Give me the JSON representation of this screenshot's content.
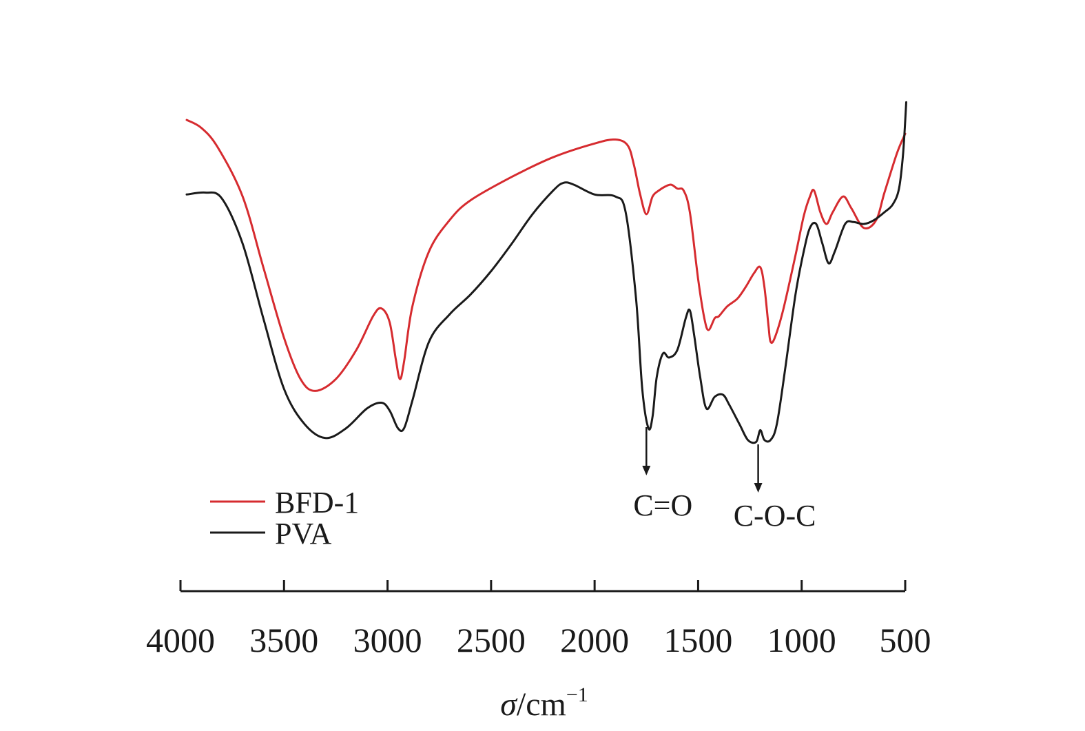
{
  "chart_data": {
    "type": "line",
    "xlabel": "σ/cm⁻¹",
    "xlabel_parts": {
      "symbol": "σ",
      "unit": "/cm",
      "exponent": "−1"
    },
    "xlim": [
      4000,
      500
    ],
    "x_reversed": true,
    "y_axis_shown": false,
    "grid": false,
    "legend_placement": "lower-left",
    "x_ticks": [
      {
        "value": 4000,
        "label": "4000"
      },
      {
        "value": 3500,
        "label": "3500"
      },
      {
        "value": 3000,
        "label": "3000"
      },
      {
        "value": 2500,
        "label": "2500"
      },
      {
        "value": 2000,
        "label": "2000"
      },
      {
        "value": 1500,
        "label": "1500"
      },
      {
        "value": 1000,
        "label": "1000"
      },
      {
        "value": 500,
        "label": "500"
      }
    ],
    "series": [
      {
        "name": "BFD-1",
        "color": "#d62b2f",
        "points": [
          [
            3970,
            0.835
          ],
          [
            3900,
            0.815
          ],
          [
            3820,
            0.765
          ],
          [
            3700,
            0.64
          ],
          [
            3600,
            0.46
          ],
          [
            3500,
            0.28
          ],
          [
            3420,
            0.175
          ],
          [
            3350,
            0.145
          ],
          [
            3250,
            0.175
          ],
          [
            3150,
            0.25
          ],
          [
            3070,
            0.335
          ],
          [
            3030,
            0.355
          ],
          [
            2990,
            0.32
          ],
          [
            2960,
            0.225
          ],
          [
            2940,
            0.175
          ],
          [
            2920,
            0.22
          ],
          [
            2880,
            0.36
          ],
          [
            2800,
            0.5
          ],
          [
            2700,
            0.58
          ],
          [
            2600,
            0.63
          ],
          [
            2400,
            0.69
          ],
          [
            2200,
            0.74
          ],
          [
            2000,
            0.775
          ],
          [
            1900,
            0.785
          ],
          [
            1840,
            0.77
          ],
          [
            1810,
            0.72
          ],
          [
            1780,
            0.645
          ],
          [
            1750,
            0.595
          ],
          [
            1720,
            0.64
          ],
          [
            1690,
            0.655
          ],
          [
            1660,
            0.665
          ],
          [
            1630,
            0.67
          ],
          [
            1600,
            0.66
          ],
          [
            1570,
            0.655
          ],
          [
            1540,
            0.6
          ],
          [
            1500,
            0.43
          ],
          [
            1470,
            0.33
          ],
          [
            1450,
            0.3
          ],
          [
            1420,
            0.33
          ],
          [
            1400,
            0.335
          ],
          [
            1360,
            0.36
          ],
          [
            1310,
            0.38
          ],
          [
            1270,
            0.41
          ],
          [
            1230,
            0.445
          ],
          [
            1200,
            0.46
          ],
          [
            1180,
            0.41
          ],
          [
            1160,
            0.31
          ],
          [
            1150,
            0.27
          ],
          [
            1130,
            0.28
          ],
          [
            1090,
            0.35
          ],
          [
            1030,
            0.49
          ],
          [
            990,
            0.59
          ],
          [
            960,
            0.64
          ],
          [
            940,
            0.655
          ],
          [
            910,
            0.6
          ],
          [
            880,
            0.57
          ],
          [
            850,
            0.6
          ],
          [
            800,
            0.64
          ],
          [
            760,
            0.61
          ],
          [
            700,
            0.56
          ],
          [
            640,
            0.58
          ],
          [
            600,
            0.65
          ],
          [
            540,
            0.75
          ],
          [
            500,
            0.8
          ]
        ]
      },
      {
        "name": "PVA",
        "color": "#1a1a1a",
        "points": [
          [
            3970,
            0.645
          ],
          [
            3880,
            0.65
          ],
          [
            3800,
            0.635
          ],
          [
            3700,
            0.52
          ],
          [
            3600,
            0.33
          ],
          [
            3500,
            0.15
          ],
          [
            3400,
            0.06
          ],
          [
            3300,
            0.025
          ],
          [
            3200,
            0.05
          ],
          [
            3100,
            0.1
          ],
          [
            3030,
            0.115
          ],
          [
            2990,
            0.095
          ],
          [
            2950,
            0.05
          ],
          [
            2920,
            0.05
          ],
          [
            2880,
            0.12
          ],
          [
            2800,
            0.27
          ],
          [
            2700,
            0.34
          ],
          [
            2600,
            0.39
          ],
          [
            2500,
            0.45
          ],
          [
            2400,
            0.52
          ],
          [
            2300,
            0.595
          ],
          [
            2200,
            0.655
          ],
          [
            2150,
            0.675
          ],
          [
            2100,
            0.67
          ],
          [
            2000,
            0.645
          ],
          [
            1900,
            0.64
          ],
          [
            1850,
            0.6
          ],
          [
            1800,
            0.38
          ],
          [
            1770,
            0.15
          ],
          [
            1740,
            0.05
          ],
          [
            1720,
            0.08
          ],
          [
            1700,
            0.18
          ],
          [
            1670,
            0.24
          ],
          [
            1640,
            0.23
          ],
          [
            1600,
            0.25
          ],
          [
            1560,
            0.33
          ],
          [
            1540,
            0.35
          ],
          [
            1520,
            0.29
          ],
          [
            1490,
            0.18
          ],
          [
            1460,
            0.1
          ],
          [
            1420,
            0.13
          ],
          [
            1380,
            0.135
          ],
          [
            1350,
            0.11
          ],
          [
            1300,
            0.06
          ],
          [
            1260,
            0.02
          ],
          [
            1220,
            0.015
          ],
          [
            1200,
            0.045
          ],
          [
            1180,
            0.02
          ],
          [
            1150,
            0.02
          ],
          [
            1120,
            0.06
          ],
          [
            1080,
            0.2
          ],
          [
            1030,
            0.39
          ],
          [
            990,
            0.5
          ],
          [
            960,
            0.56
          ],
          [
            930,
            0.57
          ],
          [
            900,
            0.52
          ],
          [
            870,
            0.47
          ],
          [
            840,
            0.5
          ],
          [
            790,
            0.57
          ],
          [
            750,
            0.575
          ],
          [
            700,
            0.57
          ],
          [
            650,
            0.58
          ],
          [
            600,
            0.6
          ],
          [
            560,
            0.62
          ],
          [
            530,
            0.66
          ],
          [
            510,
            0.75
          ],
          [
            495,
            0.88
          ]
        ]
      }
    ],
    "legend": [
      {
        "label": "BFD-1",
        "color": "#d62b2f"
      },
      {
        "label": "PVA",
        "color": "#1a1a1a"
      }
    ],
    "annotations": [
      {
        "label": "C=O",
        "x": 1750
      },
      {
        "label": "C-O-C",
        "x": 1210
      }
    ]
  }
}
